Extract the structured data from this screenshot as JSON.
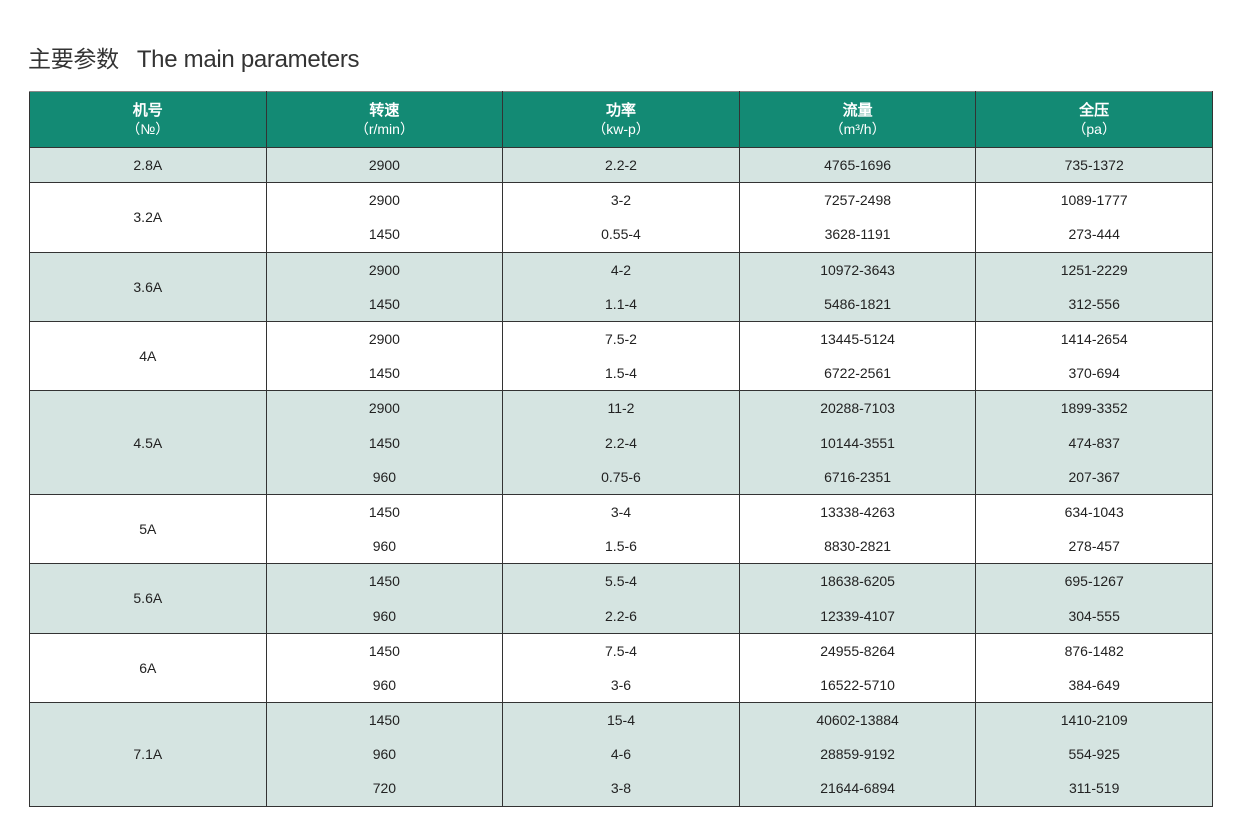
{
  "title": {
    "cn": "主要参数",
    "en": "The main parameters"
  },
  "colors": {
    "header": "#138a74",
    "shaded_row": "#d5e4e1"
  },
  "columns": [
    {
      "label": "机号",
      "unit": "（№）"
    },
    {
      "label": "转速",
      "unit": "（r/min）"
    },
    {
      "label": "功率",
      "unit": "（kw-p）"
    },
    {
      "label": "流量",
      "unit": "（m³/h）"
    },
    {
      "label": "全压",
      "unit": "（pa）"
    }
  ],
  "groups": [
    {
      "model": "2.8A",
      "rows": [
        [
          "2900",
          "2.2-2",
          "4765-1696",
          "735-1372"
        ]
      ]
    },
    {
      "model": "3.2A",
      "rows": [
        [
          "2900",
          "3-2",
          "7257-2498",
          "1089-1777"
        ],
        [
          "1450",
          "0.55-4",
          "3628-1191",
          "273-444"
        ]
      ]
    },
    {
      "model": "3.6A",
      "rows": [
        [
          "2900",
          "4-2",
          "10972-3643",
          "1251-2229"
        ],
        [
          "1450",
          "1.1-4",
          "5486-1821",
          "312-556"
        ]
      ]
    },
    {
      "model": "4A",
      "rows": [
        [
          "2900",
          "7.5-2",
          "13445-5124",
          "1414-2654"
        ],
        [
          "1450",
          "1.5-4",
          "6722-2561",
          "370-694"
        ]
      ]
    },
    {
      "model": "4.5A",
      "rows": [
        [
          "2900",
          "11-2",
          "20288-7103",
          "1899-3352"
        ],
        [
          "1450",
          "2.2-4",
          "10144-3551",
          "474-837"
        ],
        [
          "960",
          "0.75-6",
          "6716-2351",
          "207-367"
        ]
      ]
    },
    {
      "model": "5A",
      "rows": [
        [
          "1450",
          "3-4",
          "13338-4263",
          "634-1043"
        ],
        [
          "960",
          "1.5-6",
          "8830-2821",
          "278-457"
        ]
      ]
    },
    {
      "model": "5.6A",
      "rows": [
        [
          "1450",
          "5.5-4",
          "18638-6205",
          "695-1267"
        ],
        [
          "960",
          "2.2-6",
          "12339-4107",
          "304-555"
        ]
      ]
    },
    {
      "model": "6A",
      "rows": [
        [
          "1450",
          "7.5-4",
          "24955-8264",
          "876-1482"
        ],
        [
          "960",
          "3-6",
          "16522-5710",
          "384-649"
        ]
      ]
    },
    {
      "model": "7.1A",
      "rows": [
        [
          "1450",
          "15-4",
          "40602-13884",
          "1410-2109"
        ],
        [
          "960",
          "4-6",
          "28859-9192",
          "554-925"
        ],
        [
          "720",
          "3-8",
          "21644-6894",
          "311-519"
        ]
      ]
    }
  ]
}
